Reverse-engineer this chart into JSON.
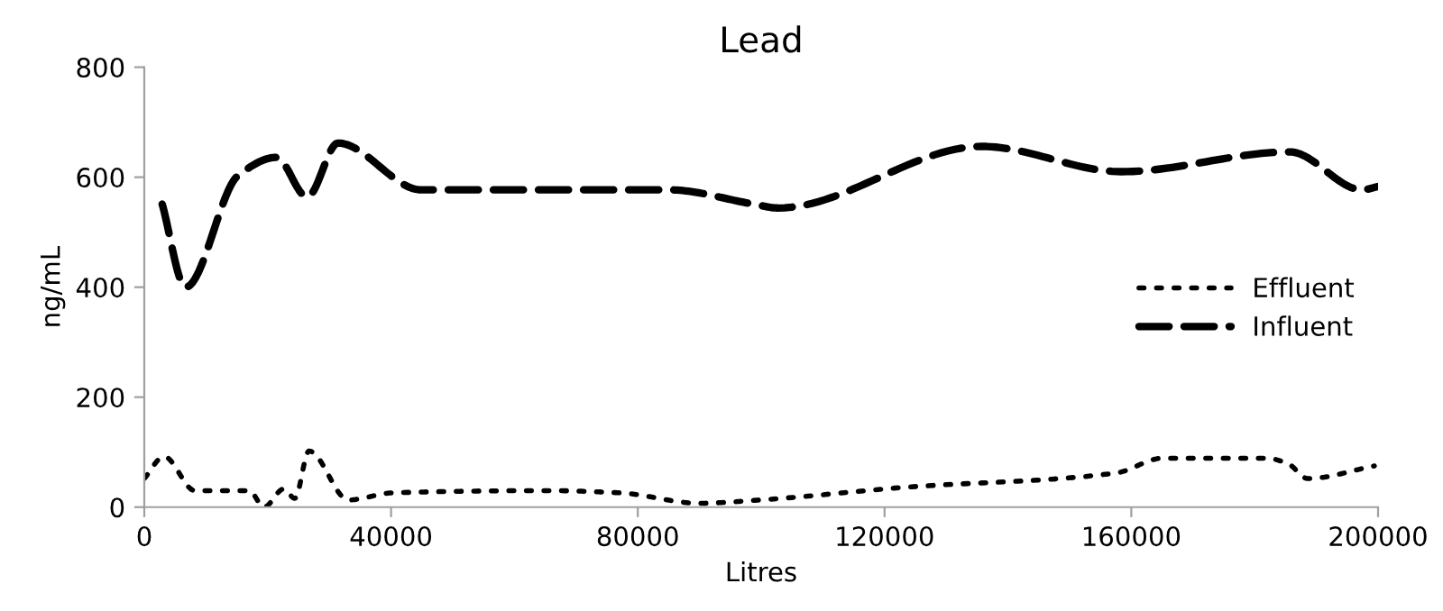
{
  "chart_data": {
    "type": "line",
    "title": "Lead",
    "xlabel": "Litres",
    "ylabel": "ng/mL",
    "xlim": [
      0,
      200000
    ],
    "xticks": [
      0,
      40000,
      80000,
      120000,
      160000,
      200000
    ],
    "ylim": [
      0,
      800
    ],
    "yticks": [
      0,
      200,
      400,
      600,
      800
    ],
    "grid": false,
    "legend": "right",
    "marker": "none",
    "series": [
      {
        "name": "Effluent",
        "color": "#000000",
        "line_style": "dotted",
        "x": [
          0,
          3200,
          8200,
          17000,
          19400,
          22600,
          24400,
          26700,
          33100,
          40200,
          65400,
          77100,
          90000,
          99700,
          123200,
          157500,
          165100,
          181900,
          185400,
          188600,
          199400
        ],
        "values": [
          52,
          92,
          30,
          30,
          0,
          33,
          16,
          102,
          13,
          26,
          30,
          26,
          7,
          13,
          36,
          62,
          89,
          89,
          79,
          52,
          75
        ]
      },
      {
        "name": "Influent",
        "color": "#000000",
        "line_style": "dashed",
        "x": [
          2900,
          6700,
          15200,
          21400,
          26400,
          31400,
          44900,
          85000,
          98800,
          102700,
          135800,
          158400,
          185700,
          197400,
          200000
        ],
        "values": [
          551,
          400,
          603,
          636,
          564,
          662,
          577,
          577,
          551,
          544,
          656,
          610,
          646,
          577,
          583
        ]
      }
    ]
  }
}
